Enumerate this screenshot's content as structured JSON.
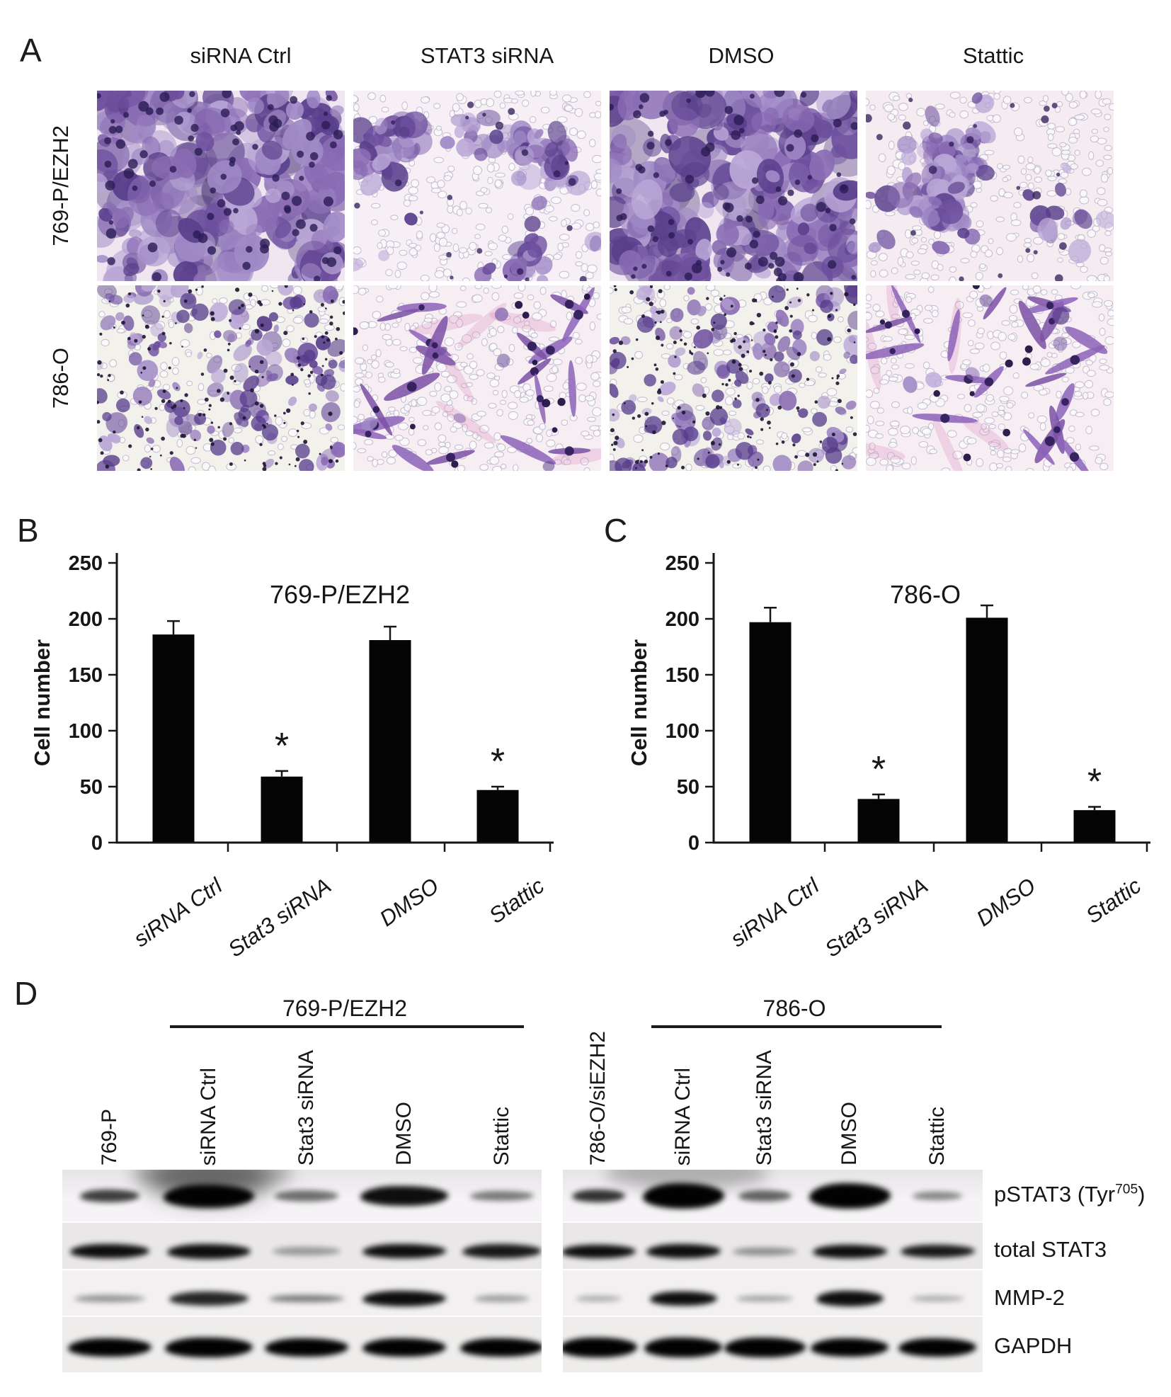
{
  "panel_a": {
    "label": "A",
    "col_headers": [
      "siRNA Ctrl",
      "STAT3 siRNA",
      "DMSO",
      "Stattic"
    ],
    "row_labels": [
      "769-P/EZH2",
      "786-O"
    ],
    "tiles": [
      [
        {
          "kind": "dense",
          "seed": 11,
          "bg": "#efe6f0"
        },
        {
          "kind": "clusters",
          "seed": 22,
          "bg": "#f6f0f6"
        },
        {
          "kind": "dense",
          "seed": 33,
          "bg": "#efe6f0"
        },
        {
          "kind": "clusters",
          "seed": 44,
          "bg": "#f5ecf2"
        }
      ],
      [
        {
          "kind": "scatter",
          "seed": 55,
          "bg": "#f2f1eb"
        },
        {
          "kind": "spindle",
          "seed": 66,
          "bg": "#f6eef3"
        },
        {
          "kind": "scatter",
          "seed": 77,
          "bg": "#f2f1eb"
        },
        {
          "kind": "spindle",
          "seed": 88,
          "bg": "#f7eef4"
        }
      ]
    ],
    "stain_palette": [
      "#8a6cb4",
      "#6d4f9e",
      "#a08ac6",
      "#5a3f8c",
      "#b9a6d6"
    ],
    "nucleus_color": "#2b1b55",
    "dot_color": "#1d1533",
    "pore_stroke": "#b3abc0"
  },
  "chart_data": [
    {
      "id": "B",
      "panel_letter": "B",
      "type": "bar",
      "title": "769-P/EZH2",
      "ylabel": "Cell number",
      "xlabel": "",
      "ylim": [
        0,
        250
      ],
      "yticks": [
        0,
        50,
        100,
        150,
        200,
        250
      ],
      "categories": [
        "siRNA Ctrl",
        "Stat3 siRNA",
        "DMSO",
        "Stattic"
      ],
      "values": [
        186,
        59,
        181,
        47
      ],
      "errors": [
        12,
        5,
        12,
        3
      ],
      "significance": [
        false,
        true,
        false,
        true
      ],
      "sig_symbol": "*",
      "bar_color": "#050505",
      "grid": false,
      "legend": "none"
    },
    {
      "id": "C",
      "panel_letter": "C",
      "type": "bar",
      "title": "786-O",
      "ylabel": "Cell number",
      "xlabel": "",
      "ylim": [
        0,
        250
      ],
      "yticks": [
        0,
        50,
        100,
        150,
        200,
        250
      ],
      "categories": [
        "siRNA Ctrl",
        "Stat3 siRNA",
        "DMSO",
        "Stattic"
      ],
      "values": [
        197,
        39,
        201,
        29
      ],
      "errors": [
        13,
        4,
        11,
        3
      ],
      "significance": [
        false,
        true,
        false,
        true
      ],
      "sig_symbol": "*",
      "bar_color": "#050505",
      "grid": false,
      "legend": "none"
    }
  ],
  "panel_d": {
    "label": "D",
    "groups": [
      {
        "header": "769-P/EZH2",
        "lanes": [
          "769-P",
          "siRNA Ctrl",
          "Stat3 siRNA",
          "DMSO",
          "Stattic"
        ]
      },
      {
        "header": "786-O",
        "lanes": [
          "786-O/siEZH2",
          "siRNA Ctrl",
          "Stat3 siRNA",
          "DMSO",
          "Stattic"
        ]
      }
    ],
    "rows": [
      {
        "label_pre": "pSTAT3 (Tyr",
        "label_sup": "705",
        "label_post": ")"
      },
      {
        "label": "total STAT3"
      },
      {
        "label": "MMP-2"
      },
      {
        "label": "GAPDH"
      }
    ],
    "bands": {
      "left": [
        [
          [
            0.75,
            0.75,
            0.8
          ],
          [
            1.0,
            1.15,
            1.5,
            1
          ],
          [
            0.55,
            0.8,
            0.7
          ],
          [
            0.95,
            1.1,
            1.3
          ],
          [
            0.5,
            0.8,
            0.6
          ]
        ],
        [
          [
            0.95,
            1.0,
            1.0
          ],
          [
            0.95,
            1.05,
            1.05
          ],
          [
            0.35,
            0.85,
            0.6
          ],
          [
            0.95,
            1.05,
            1.0
          ],
          [
            0.9,
            1.0,
            1.0
          ]
        ],
        [
          [
            0.4,
            0.9,
            0.6
          ],
          [
            0.85,
            1.0,
            1.2
          ],
          [
            0.5,
            0.95,
            0.65
          ],
          [
            0.95,
            1.05,
            1.35
          ],
          [
            0.35,
            0.7,
            0.6
          ]
        ],
        [
          [
            1.0,
            1.05,
            1.0
          ],
          [
            1.0,
            1.1,
            1.1
          ],
          [
            1.0,
            1.05,
            1.0
          ],
          [
            1.0,
            1.05,
            1.0
          ],
          [
            1.0,
            1.05,
            1.0
          ]
        ]
      ],
      "right": [
        [
          [
            0.8,
            0.75,
            0.8
          ],
          [
            1.0,
            1.15,
            1.6
          ],
          [
            0.6,
            0.75,
            0.7
          ],
          [
            1.0,
            1.15,
            1.6
          ],
          [
            0.45,
            0.7,
            0.55
          ]
        ],
        [
          [
            0.95,
            1.05,
            0.95
          ],
          [
            0.95,
            1.05,
            1.0
          ],
          [
            0.4,
            0.9,
            0.55
          ],
          [
            0.95,
            1.05,
            0.95
          ],
          [
            0.9,
            1.05,
            0.9
          ]
        ],
        [
          [
            0.3,
            0.65,
            0.5
          ],
          [
            0.95,
            0.95,
            1.3
          ],
          [
            0.35,
            0.8,
            0.55
          ],
          [
            0.95,
            0.95,
            1.35
          ],
          [
            0.3,
            0.75,
            0.5
          ]
        ],
        [
          [
            1.0,
            1.1,
            1.1
          ],
          [
            1.0,
            1.1,
            1.1
          ],
          [
            1.0,
            1.15,
            1.1
          ],
          [
            1.0,
            1.1,
            1.0
          ],
          [
            1.0,
            1.1,
            1.0
          ]
        ]
      ]
    }
  }
}
